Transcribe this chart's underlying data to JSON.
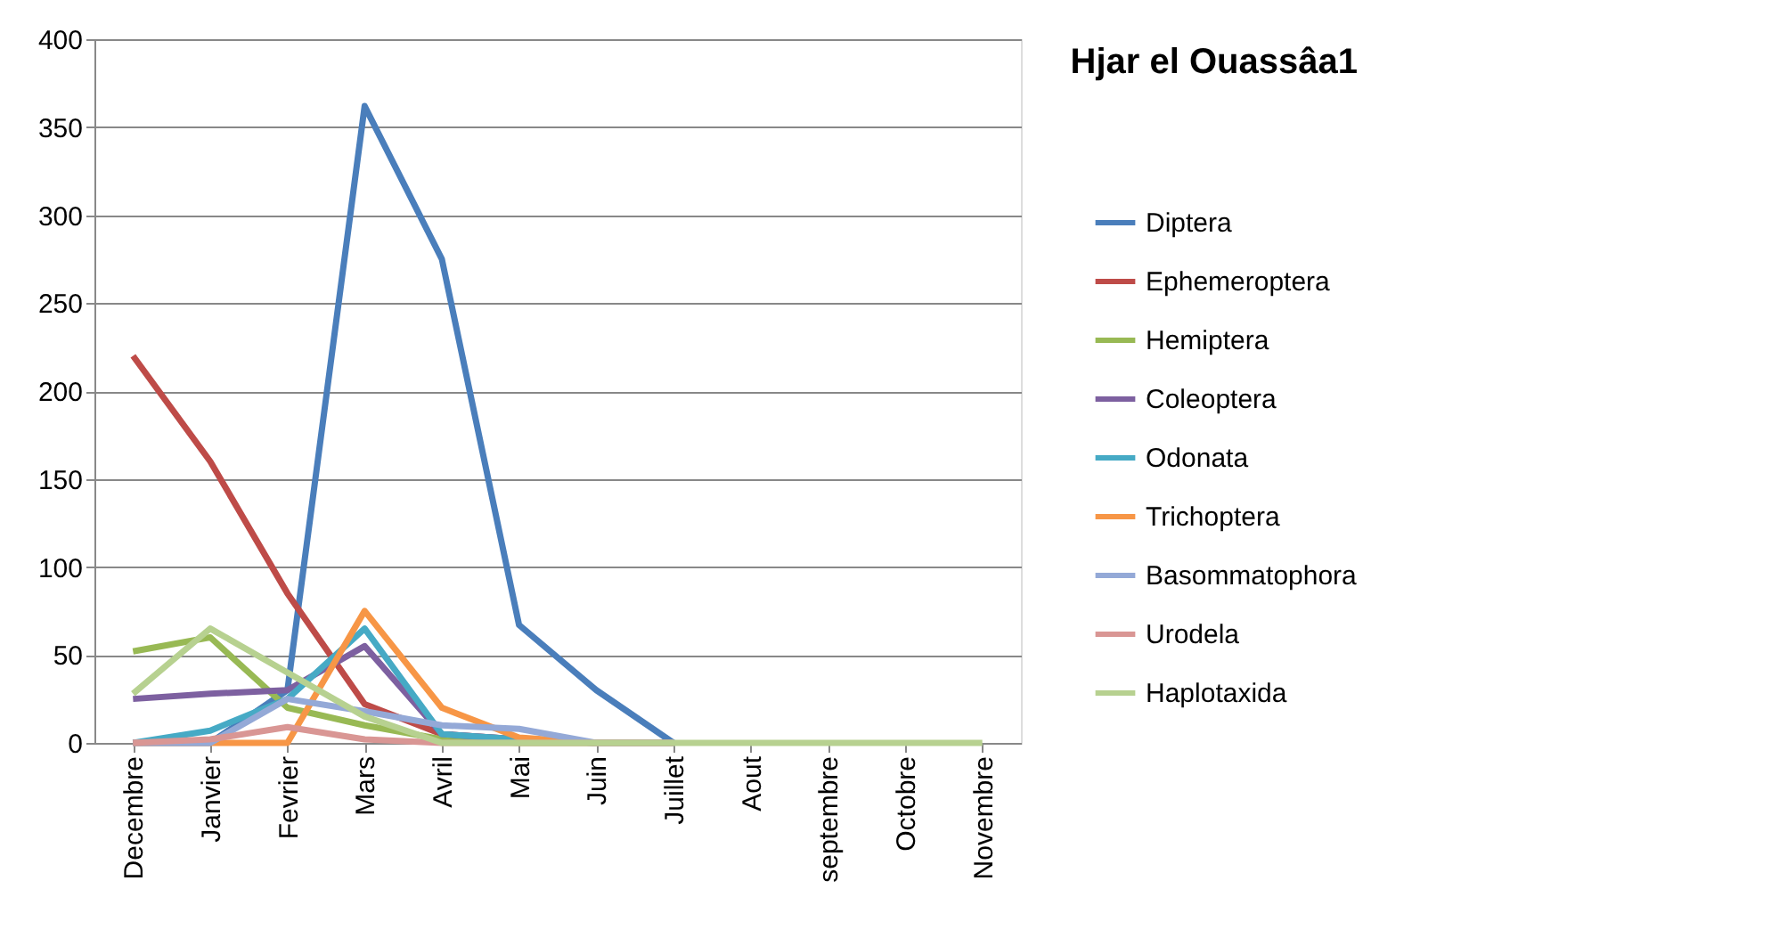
{
  "chart_data": {
    "type": "line",
    "title": "Hjar el Ouassâa1",
    "categories": [
      "Decembre",
      "Janvier",
      "Fevrier",
      "Mars",
      "Avril",
      "Mai",
      "Juin",
      "Juillet",
      "Aout",
      "septembre",
      "Octobre",
      "Novembre"
    ],
    "ylim": [
      0,
      400
    ],
    "yticks": [
      0,
      50,
      100,
      150,
      200,
      250,
      300,
      350,
      400
    ],
    "grid": "y",
    "legend": "right",
    "marker": "none",
    "line_style": "solid",
    "series": [
      {
        "name": "Diptera",
        "color": "#4a7ebb",
        "values": [
          0,
          0,
          30,
          362,
          275,
          67,
          30,
          0,
          null,
          null,
          null,
          null
        ]
      },
      {
        "name": "Ephemeroptera",
        "color": "#be4b48",
        "values": [
          220,
          160,
          85,
          22,
          5,
          2,
          0,
          0,
          null,
          null,
          null,
          null
        ]
      },
      {
        "name": "Hemiptera",
        "color": "#98b954",
        "values": [
          52,
          60,
          20,
          10,
          2,
          0,
          0,
          0,
          null,
          null,
          null,
          null
        ]
      },
      {
        "name": "Coleoptera",
        "color": "#7d60a0",
        "values": [
          25,
          28,
          30,
          55,
          5,
          2,
          0,
          0,
          null,
          null,
          null,
          null
        ]
      },
      {
        "name": "Odonata",
        "color": "#46aac5",
        "values": [
          0,
          7,
          25,
          65,
          5,
          2,
          0,
          0,
          null,
          null,
          null,
          null
        ]
      },
      {
        "name": "Trichoptera",
        "color": "#f79646",
        "values": [
          0,
          0,
          0,
          75,
          20,
          3,
          0,
          0,
          null,
          null,
          null,
          null
        ]
      },
      {
        "name": "Basommatophora",
        "color": "#94a9d7",
        "values": [
          0,
          0,
          25,
          18,
          10,
          8,
          0,
          0,
          null,
          null,
          null,
          null
        ]
      },
      {
        "name": "Urodela",
        "color": "#d99694",
        "values": [
          0,
          2,
          9,
          2,
          0,
          0,
          0,
          0,
          null,
          null,
          null,
          null
        ]
      },
      {
        "name": "Haplotaxida",
        "color": "#b7d190",
        "values": [
          28,
          65,
          40,
          15,
          0,
          0,
          0,
          0,
          0,
          0,
          0,
          0
        ]
      }
    ]
  }
}
